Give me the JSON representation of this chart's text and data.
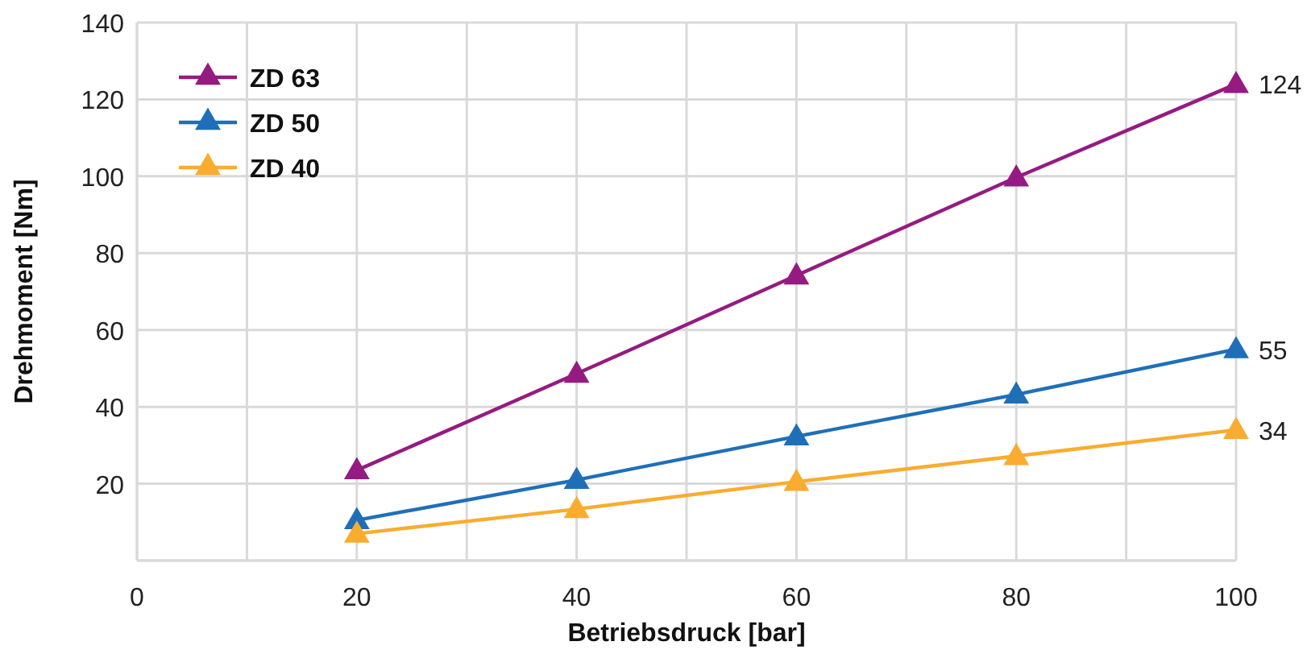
{
  "chart_data": {
    "type": "line",
    "xlabel": "Betriebsdruck [bar]",
    "ylabel": "Drehmoment [Nm]",
    "x": [
      20,
      40,
      60,
      80,
      100
    ],
    "xlim": [
      0,
      100
    ],
    "xticks": [
      0,
      {
        "value": 10,
        "label": null
      },
      20,
      {
        "value": 30,
        "label": null
      },
      40,
      {
        "value": 50,
        "label": null
      },
      60,
      {
        "value": 70,
        "label": null
      },
      80,
      {
        "value": 90,
        "label": null
      },
      100
    ],
    "ylim": [
      0,
      140
    ],
    "yticks": [
      {
        "value": 0,
        "label": null
      },
      20,
      40,
      60,
      80,
      100,
      120,
      140
    ],
    "grid": true,
    "legend": "top left",
    "marker": "triangle",
    "line_style": "solid",
    "series": [
      {
        "name": "ZD 63",
        "color": "#951b81",
        "values": [
          23.5,
          48.6,
          74.2,
          99.7,
          124
        ],
        "value_labels": [
          null,
          null,
          null,
          null,
          "124"
        ]
      },
      {
        "name": "ZD 50",
        "color": "#1f6fb8",
        "values": [
          10.5,
          21,
          32.3,
          43.2,
          55
        ],
        "value_labels": [
          null,
          null,
          null,
          null,
          "55"
        ]
      },
      {
        "name": "ZD 40",
        "color": "#f9ac2f",
        "values": [
          7,
          13.4,
          20.5,
          27.2,
          34
        ],
        "value_labels": [
          null,
          null,
          null,
          null,
          "34"
        ]
      }
    ]
  }
}
